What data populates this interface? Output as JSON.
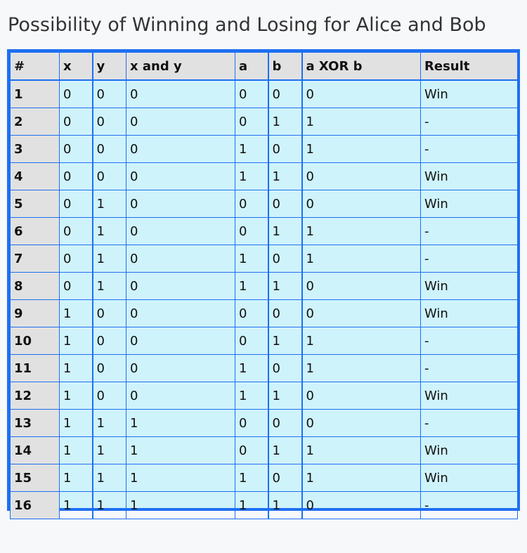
{
  "title": "Possibility of Winning and Losing for Alice and Bob",
  "table": {
    "headers": [
      "#",
      "x",
      "y",
      "x and y",
      "a",
      "b",
      "a XOR b",
      "Result"
    ],
    "rows": [
      [
        "1",
        "0",
        "0",
        "0",
        "0",
        "0",
        "0",
        "Win"
      ],
      [
        "2",
        "0",
        "0",
        "0",
        "0",
        "1",
        "1",
        "-"
      ],
      [
        "3",
        "0",
        "0",
        "0",
        "1",
        "0",
        "1",
        "-"
      ],
      [
        "4",
        "0",
        "0",
        "0",
        "1",
        "1",
        "0",
        "Win"
      ],
      [
        "5",
        "0",
        "1",
        "0",
        "0",
        "0",
        "0",
        "Win"
      ],
      [
        "6",
        "0",
        "1",
        "0",
        "0",
        "1",
        "1",
        "-"
      ],
      [
        "7",
        "0",
        "1",
        "0",
        "1",
        "0",
        "1",
        "-"
      ],
      [
        "8",
        "0",
        "1",
        "0",
        "1",
        "1",
        "0",
        "Win"
      ],
      [
        "9",
        "1",
        "0",
        "0",
        "0",
        "0",
        "0",
        "Win"
      ],
      [
        "10",
        "1",
        "0",
        "0",
        "0",
        "1",
        "1",
        "-"
      ],
      [
        "11",
        "1",
        "0",
        "0",
        "1",
        "0",
        "1",
        "-"
      ],
      [
        "12",
        "1",
        "0",
        "0",
        "1",
        "1",
        "0",
        "Win"
      ],
      [
        "13",
        "1",
        "1",
        "1",
        "0",
        "0",
        "0",
        "-"
      ],
      [
        "14",
        "1",
        "1",
        "1",
        "0",
        "1",
        "1",
        "Win"
      ],
      [
        "15",
        "1",
        "1",
        "1",
        "1",
        "0",
        "1",
        "Win"
      ],
      [
        "16",
        "1",
        "1",
        "1",
        "1",
        "1",
        "0",
        "-"
      ]
    ]
  },
  "colors": {
    "border": "#1e6ff2",
    "cell_background": "#cff3fb",
    "header_background": "#e1e1e1"
  }
}
